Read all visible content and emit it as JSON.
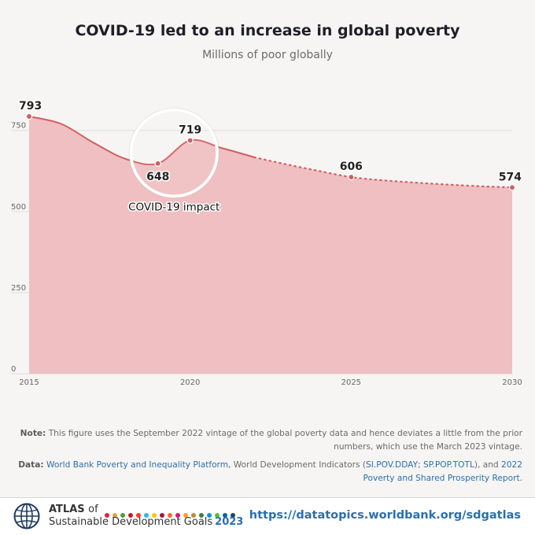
{
  "chart_data": {
    "type": "area",
    "title": "COVID-19 led to an increase in global poverty",
    "subtitle": "Millions of poor globally",
    "xlim": [
      2015,
      2030
    ],
    "ylim": [
      0,
      793
    ],
    "xticks": [
      "2015",
      "2020",
      "2025",
      "2030"
    ],
    "yticks": [
      "0",
      "250",
      "500",
      "750"
    ],
    "grid": true,
    "series": [
      {
        "style": "solid",
        "x": [
          2015,
          2016,
          2017,
          2018,
          2019,
          2020,
          2021,
          2022
        ],
        "values": [
          793,
          770,
          712,
          662,
          648,
          719,
          695,
          667
        ]
      },
      {
        "style": "dotted",
        "x": [
          2022,
          2023,
          2024,
          2025,
          2026,
          2027,
          2028,
          2029,
          2030
        ],
        "values": [
          667,
          645,
          625,
          606,
          596,
          589,
          583,
          578,
          574
        ]
      }
    ],
    "point_labels": [
      {
        "x": 2015,
        "y": 793,
        "text": "793"
      },
      {
        "x": 2019,
        "y": 648,
        "text": "648"
      },
      {
        "x": 2020,
        "y": 719,
        "text": "719"
      },
      {
        "x": 2025,
        "y": 606,
        "text": "606"
      },
      {
        "x": 2030,
        "y": 574,
        "text": "574"
      }
    ],
    "annotation": {
      "text": "COVID-19 impact",
      "x": 2019.5,
      "y": 690
    },
    "colors": {
      "line": "#d05f63",
      "fill": "#efbfc1",
      "grid": "#dddddd"
    }
  },
  "notes": {
    "note_label": "Note:",
    "note_text": "This figure uses the September 2022 vintage of the global poverty data and hence deviates a little from the prior numbers, which use the March 2023 vintage.",
    "data_label": "Data:",
    "src1": "World Bank Poverty and Inequality Platform",
    "mid1": ", World Development Indicators (",
    "src2": "SI.POV.DDAY",
    "sep": "; ",
    "src3": "SP.POP.TOTL",
    "mid2": "), and ",
    "src4": "2022 Poverty and Shared Prosperity Report",
    "end": "."
  },
  "footer": {
    "atlas": "ATLAS",
    "of": "of",
    "subtitle": "Sustainable Development Goals",
    "year": "2023",
    "url": "https://datatopics.worldbank.org/sdgatlas",
    "dot_colors": [
      "#e5243b",
      "#dda63a",
      "#4c9f38",
      "#c5192d",
      "#ff3a21",
      "#26bde2",
      "#fcc30b",
      "#a21942",
      "#fd6925",
      "#dd1367",
      "#fd9d24",
      "#bf8b2e",
      "#3f7e44",
      "#0a97d9",
      "#56c02b",
      "#00689d",
      "#19486a"
    ]
  }
}
